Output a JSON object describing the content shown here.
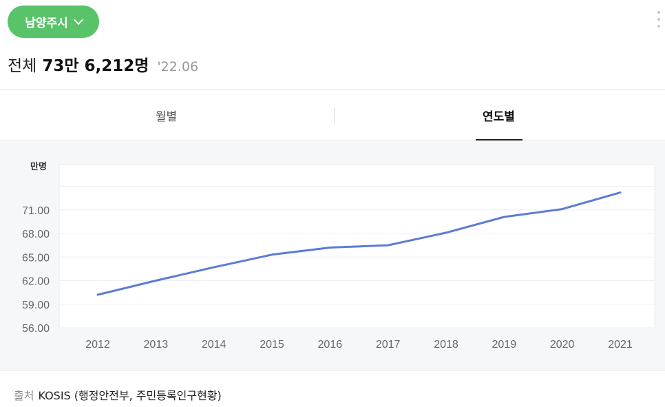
{
  "region": {
    "label": "남양주시"
  },
  "headline": {
    "label": "전체",
    "value": "73만 6,212명",
    "date": "'22.06"
  },
  "tabs": [
    {
      "label": "월별",
      "active": false
    },
    {
      "label": "연도별",
      "active": true
    }
  ],
  "source": {
    "prefix": "출처",
    "text": "KOSIS (행정안전부, 주민등록인구현황)"
  },
  "colors": {
    "accent": "#59c36a",
    "line": "#5b7bd5"
  },
  "chart_data": {
    "type": "line",
    "ylabel": "만명",
    "xlabel": "",
    "x": [
      "2012",
      "2013",
      "2014",
      "2015",
      "2016",
      "2017",
      "2018",
      "2019",
      "2020",
      "2021"
    ],
    "series": [
      {
        "values": [
          60.2,
          62.0,
          63.7,
          65.3,
          66.2,
          66.5,
          68.1,
          70.1,
          71.1,
          73.2
        ]
      }
    ],
    "ylim": [
      56,
      74
    ],
    "yticks": [
      56,
      59,
      62,
      65,
      68,
      71
    ],
    "ytick_labels": [
      "56.00",
      "59.00",
      "62.00",
      "65.00",
      "68.00",
      "71.00"
    ],
    "grid": true,
    "legend": "none"
  }
}
